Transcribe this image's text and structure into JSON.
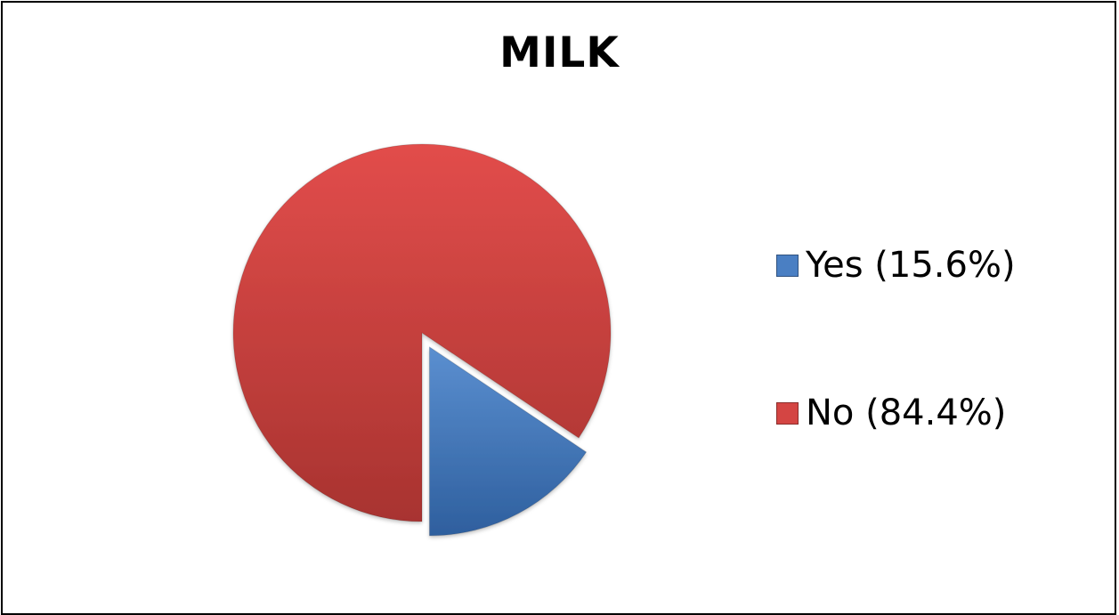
{
  "chart_data": {
    "type": "pie",
    "title": "MILK",
    "slices": [
      {
        "label": "Yes (15.6%)",
        "value": 15.6,
        "color": "#4a7fc3",
        "exploded": true
      },
      {
        "label": "No (84.4%)",
        "value": 84.4,
        "color": "#d44543",
        "exploded": false
      }
    ],
    "legend": "right"
  }
}
